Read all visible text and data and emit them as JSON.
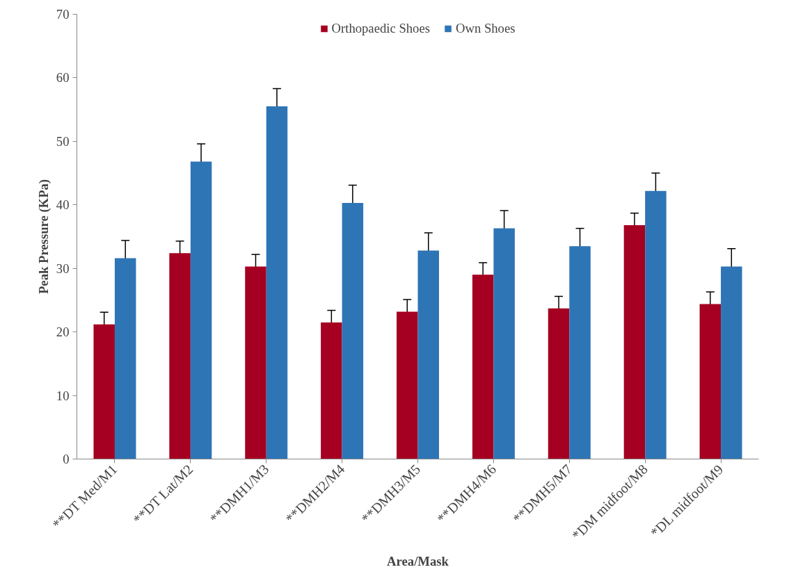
{
  "chart_data": {
    "type": "bar",
    "xlabel": "Area/Mask",
    "ylabel": "Peak Pressure (KPa)",
    "categories": [
      "**DT Med/M1",
      "**DT Lat/M2",
      "**DMH1/M3",
      "**DMH2/M4",
      "**DMH3/M5",
      "**DMH4/M6",
      "**DMH5/M7",
      "*DM midfoot/M8",
      "*DL midfoot/M9"
    ],
    "series": [
      {
        "name": "Orthopaedic Shoes",
        "color": "#a50021",
        "values": [
          21.2,
          32.4,
          30.3,
          21.5,
          23.2,
          29.0,
          23.7,
          36.8,
          24.4
        ],
        "errors": [
          1.9,
          1.9,
          1.9,
          1.9,
          1.9,
          1.9,
          1.9,
          1.9,
          1.9
        ]
      },
      {
        "name": "Own Shoes",
        "color": "#2e75b6",
        "values": [
          31.6,
          46.8,
          55.5,
          40.3,
          32.8,
          36.3,
          33.5,
          42.2,
          30.3
        ],
        "errors": [
          2.8,
          2.8,
          2.8,
          2.8,
          2.8,
          2.8,
          2.8,
          2.8,
          2.8
        ]
      }
    ],
    "ylim": [
      0,
      70
    ],
    "yticks": [
      0,
      10,
      20,
      30,
      40,
      50,
      60,
      70
    ],
    "grid": false,
    "legend": "top"
  }
}
